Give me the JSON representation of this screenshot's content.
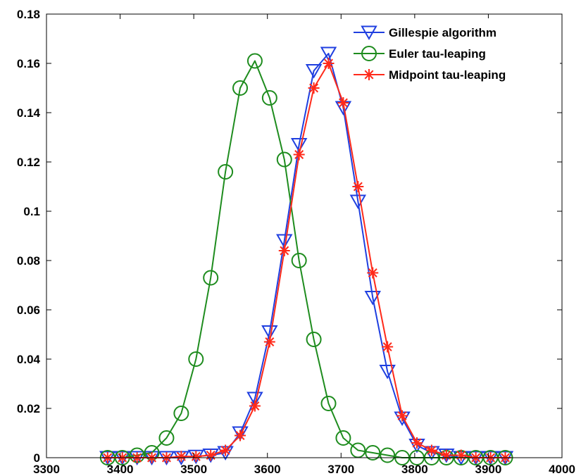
{
  "chart_data": {
    "type": "line",
    "title": "",
    "xlabel": "",
    "ylabel": "",
    "xlim": [
      3300,
      4000
    ],
    "ylim": [
      0,
      0.18
    ],
    "xticks": [
      3300,
      3400,
      3500,
      3600,
      3700,
      3800,
      3900,
      4000
    ],
    "yticks": [
      0,
      0.02,
      0.04,
      0.06,
      0.08,
      0.1,
      0.12,
      0.14,
      0.16,
      0.18
    ],
    "xtick_labels": [
      "3300",
      "3400",
      "3500",
      "3600",
      "3700",
      "3800",
      "3900",
      "4000"
    ],
    "ytick_labels": [
      "0",
      "0.02",
      "0.04",
      "0.06",
      "0.08",
      "0.1",
      "0.12",
      "0.14",
      "0.16",
      "0.18"
    ],
    "grid": false,
    "legend_position": "top-right",
    "x": [
      3383,
      3403,
      3423,
      3443,
      3463,
      3483,
      3503,
      3523,
      3543,
      3563,
      3583,
      3603,
      3623,
      3643,
      3663,
      3683,
      3703,
      3723,
      3743,
      3763,
      3783,
      3803,
      3823,
      3843,
      3863,
      3883,
      3903,
      3923
    ],
    "series": [
      {
        "name": "Gillespie algorithm",
        "color": "#1f3fe0",
        "marker": "triangle-down",
        "values": [
          0,
          0,
          0,
          0,
          0,
          0,
          0.0005,
          0.001,
          0.002,
          0.01,
          0.024,
          0.051,
          0.088,
          0.127,
          0.157,
          0.164,
          0.142,
          0.104,
          0.065,
          0.035,
          0.016,
          0.005,
          0.002,
          0.001,
          0,
          0,
          0,
          0
        ]
      },
      {
        "name": "Euler tau-leaping",
        "color": "#1e8c1e",
        "marker": "circle",
        "values": [
          0,
          0,
          0.001,
          0.002,
          0.008,
          0.018,
          0.04,
          0.073,
          0.116,
          0.15,
          0.161,
          0.146,
          0.121,
          0.08,
          0.048,
          0.022,
          0.008,
          0.003,
          0.002,
          0.001,
          0,
          0,
          0,
          0,
          0,
          0,
          0,
          0
        ]
      },
      {
        "name": "Midpoint tau-leaping",
        "color": "#ff2a1a",
        "marker": "asterisk",
        "values": [
          0,
          0,
          0,
          0,
          0,
          0.0005,
          0.0005,
          0.001,
          0.003,
          0.009,
          0.021,
          0.047,
          0.084,
          0.123,
          0.15,
          0.16,
          0.144,
          0.11,
          0.075,
          0.045,
          0.017,
          0.006,
          0.003,
          0.001,
          0.001,
          0,
          0,
          0
        ]
      }
    ]
  }
}
